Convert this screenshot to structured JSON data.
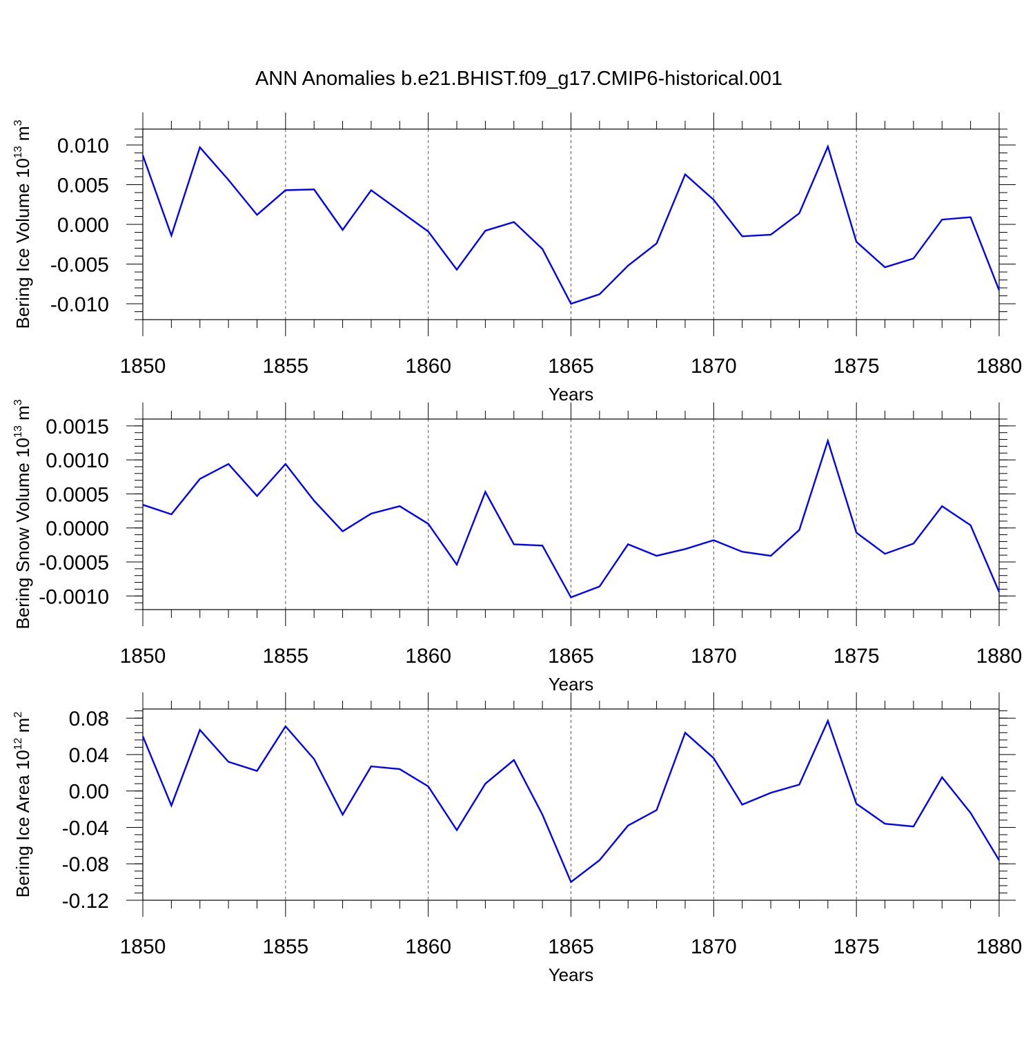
{
  "title": "ANN Anomalies b.e21.BHIST.f09_g17.CMIP6-historical.001",
  "line_color": "#0000ff",
  "chart_data": [
    {
      "type": "line",
      "ylabel": "Bering Ice Volume 10",
      "ylabel_exp": "13",
      "ylabel_unit": " m",
      "ylabel_unit_exp": "3",
      "xlabel": "Years",
      "xlim": [
        1850,
        1880
      ],
      "ylim": [
        -0.012,
        0.012
      ],
      "xticks": [
        "1850",
        "1855",
        "1860",
        "1865",
        "1870",
        "1875",
        "1880"
      ],
      "yticks": [
        "0.010",
        "0.005",
        "0.000",
        "-0.005",
        "-0.010"
      ],
      "ytick_values": [
        0.01,
        0.005,
        0.0,
        -0.005,
        -0.01
      ],
      "x": [
        1850,
        1851,
        1852,
        1853,
        1854,
        1855,
        1856,
        1857,
        1858,
        1859,
        1860,
        1861,
        1862,
        1863,
        1864,
        1865,
        1866,
        1867,
        1868,
        1869,
        1870,
        1871,
        1872,
        1873,
        1874,
        1875,
        1876,
        1877,
        1878,
        1879,
        1880
      ],
      "values": [
        0.0087,
        -0.0014,
        0.0097,
        0.0056,
        0.0012,
        0.0043,
        0.0044,
        -0.0007,
        0.0043,
        0.0017,
        -0.0009,
        -0.0057,
        -0.0008,
        0.0003,
        -0.0031,
        -0.01,
        -0.0088,
        -0.0052,
        -0.0024,
        0.0063,
        0.0031,
        -0.0015,
        -0.0013,
        0.0014,
        0.0098,
        -0.0022,
        -0.0054,
        -0.0043,
        0.0006,
        0.0009,
        -0.0083
      ]
    },
    {
      "type": "line",
      "ylabel": "Bering Snow Volume 10",
      "ylabel_exp": "13",
      "ylabel_unit": " m",
      "ylabel_unit_exp": "3",
      "xlabel": "Years",
      "xlim": [
        1850,
        1880
      ],
      "ylim": [
        -0.0012,
        0.0016
      ],
      "xticks": [
        "1850",
        "1855",
        "1860",
        "1865",
        "1870",
        "1875",
        "1880"
      ],
      "yticks": [
        "0.0015",
        "0.0010",
        "0.0005",
        "0.0000",
        "-0.0005",
        "-0.0010"
      ],
      "ytick_values": [
        0.0015,
        0.001,
        0.0005,
        0.0,
        -0.0005,
        -0.001
      ],
      "x": [
        1850,
        1851,
        1852,
        1853,
        1854,
        1855,
        1856,
        1857,
        1858,
        1859,
        1860,
        1861,
        1862,
        1863,
        1864,
        1865,
        1866,
        1867,
        1868,
        1869,
        1870,
        1871,
        1872,
        1873,
        1874,
        1875,
        1876,
        1877,
        1878,
        1879,
        1880
      ],
      "values": [
        0.00034,
        0.0002,
        0.00072,
        0.00094,
        0.00047,
        0.00094,
        0.0004,
        -5e-05,
        0.00021,
        0.00032,
        6e-05,
        -0.00054,
        0.00053,
        -0.00024,
        -0.00026,
        -0.00102,
        -0.00086,
        -0.00024,
        -0.00041,
        -0.00031,
        -0.00018,
        -0.00035,
        -0.00041,
        -3e-05,
        0.00128,
        -7e-05,
        -0.00038,
        -0.00023,
        0.00032,
        4e-05,
        -0.00094
      ]
    },
    {
      "type": "line",
      "ylabel": "Bering Ice Area 10",
      "ylabel_exp": "12",
      "ylabel_unit": " m",
      "ylabel_unit_exp": "2",
      "xlabel": "Years",
      "xlim": [
        1850,
        1880
      ],
      "ylim": [
        -0.12,
        0.09
      ],
      "xticks": [
        "1850",
        "1855",
        "1860",
        "1865",
        "1870",
        "1875",
        "1880"
      ],
      "yticks": [
        "0.08",
        "0.04",
        "0.00",
        "-0.04",
        "-0.08",
        "-0.12"
      ],
      "ytick_values": [
        0.08,
        0.04,
        0.0,
        -0.04,
        -0.08,
        -0.12
      ],
      "x": [
        1850,
        1851,
        1852,
        1853,
        1854,
        1855,
        1856,
        1857,
        1858,
        1859,
        1860,
        1861,
        1862,
        1863,
        1864,
        1865,
        1866,
        1867,
        1868,
        1869,
        1870,
        1871,
        1872,
        1873,
        1874,
        1875,
        1876,
        1877,
        1878,
        1879,
        1880
      ],
      "values": [
        0.06,
        -0.016,
        0.067,
        0.032,
        0.022,
        0.071,
        0.035,
        -0.026,
        0.027,
        0.024,
        0.005,
        -0.043,
        0.008,
        0.034,
        -0.026,
        -0.1,
        -0.076,
        -0.038,
        -0.021,
        0.064,
        0.036,
        -0.015,
        -0.002,
        0.007,
        0.077,
        -0.014,
        -0.036,
        -0.039,
        0.015,
        -0.024,
        -0.076
      ]
    }
  ]
}
